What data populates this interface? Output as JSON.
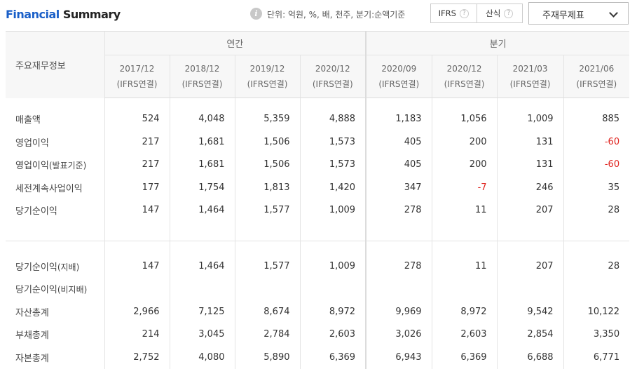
{
  "header": {
    "title_part1": "Financial",
    "title_part2": " Summary",
    "info_icon": "i",
    "unit_text": "단위: 억원, %, 배, 천주, 분기:순액기준",
    "toggle": [
      {
        "label": "IFRS",
        "help": "?"
      },
      {
        "label": "산식",
        "help": "?"
      }
    ],
    "dropdown_label": "주재무제표"
  },
  "table": {
    "corner_label": "주요재무정보",
    "group_annual": "연간",
    "group_quarter": "분기",
    "periods": [
      {
        "date": "2017/12",
        "basis": "(IFRS연결)"
      },
      {
        "date": "2018/12",
        "basis": "(IFRS연결)"
      },
      {
        "date": "2019/12",
        "basis": "(IFRS연결)"
      },
      {
        "date": "2020/12",
        "basis": "(IFRS연결)"
      },
      {
        "date": "2020/09",
        "basis": "(IFRS연결)"
      },
      {
        "date": "2020/12",
        "basis": "(IFRS연결)"
      },
      {
        "date": "2021/03",
        "basis": "(IFRS연결)"
      },
      {
        "date": "2021/06",
        "basis": "(IFRS연결)"
      }
    ],
    "rows": [
      {
        "label": "매출액",
        "sub": "",
        "values": [
          "524",
          "4,048",
          "5,359",
          "4,888",
          "1,183",
          "1,056",
          "1,009",
          "885"
        ]
      },
      {
        "label": "영업이익",
        "sub": "",
        "values": [
          "217",
          "1,681",
          "1,506",
          "1,573",
          "405",
          "200",
          "131",
          "-60"
        ]
      },
      {
        "label": "영업이익",
        "sub": "(발표기준)",
        "values": [
          "217",
          "1,681",
          "1,506",
          "1,573",
          "405",
          "200",
          "131",
          "-60"
        ]
      },
      {
        "label": "세전계속사업이익",
        "sub": "",
        "values": [
          "177",
          "1,754",
          "1,813",
          "1,420",
          "347",
          "-7",
          "246",
          "35"
        ]
      },
      {
        "label": "당기순이익",
        "sub": "",
        "values": [
          "147",
          "1,464",
          "1,577",
          "1,009",
          "278",
          "11",
          "207",
          "28"
        ]
      },
      {
        "label": "당기순이익",
        "sub": "(지배)",
        "values": [
          "147",
          "1,464",
          "1,577",
          "1,009",
          "278",
          "11",
          "207",
          "28"
        ]
      },
      {
        "label": "당기순이익",
        "sub": "(비지배)",
        "values": [
          "",
          "",
          "",
          "",
          "",
          "",
          "",
          ""
        ]
      },
      {
        "label": "자산총계",
        "sub": "",
        "values": [
          "2,966",
          "7,125",
          "8,674",
          "8,972",
          "9,969",
          "8,972",
          "9,542",
          "10,122"
        ]
      },
      {
        "label": "부채총계",
        "sub": "",
        "values": [
          "214",
          "3,045",
          "2,784",
          "2,603",
          "3,026",
          "2,603",
          "2,854",
          "3,350"
        ]
      },
      {
        "label": "자본총계",
        "sub": "",
        "values": [
          "2,752",
          "4,080",
          "5,890",
          "6,369",
          "6,943",
          "6,369",
          "6,688",
          "6,771"
        ]
      }
    ],
    "negative_color": "#e0241f"
  }
}
